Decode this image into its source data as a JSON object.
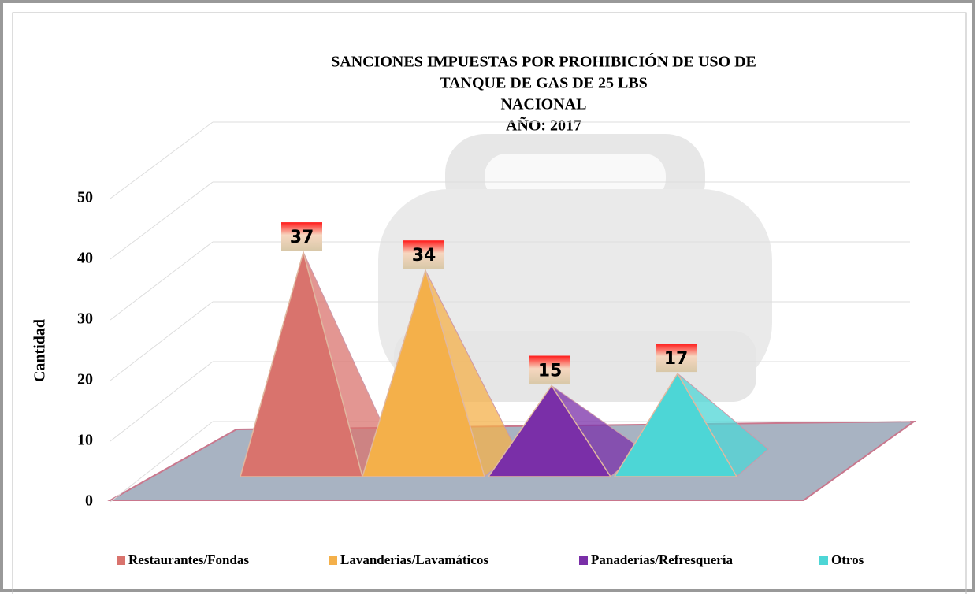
{
  "chart_data": {
    "type": "pyramid",
    "title": [
      "SANCIONES IMPUESTAS POR PROHIBICIÓN DE USO DE",
      "TANQUE DE GAS DE 25 LBS",
      "NACIONAL",
      "AÑO: 2017"
    ],
    "y_label": "Cantidad",
    "categories": [
      "Restaurantes/Fondas",
      "Lavanderias/Lavamáticos",
      "Panaderías/Refresquería",
      "Otros"
    ],
    "values": [
      37,
      34,
      15,
      17
    ],
    "colors": [
      "#d9736d",
      "#f4b04a",
      "#7a2fa8",
      "#4dd6d6"
    ],
    "ylim": [
      0,
      50
    ],
    "yticks": [
      0,
      10,
      20,
      30,
      40,
      50
    ],
    "grid": true
  }
}
